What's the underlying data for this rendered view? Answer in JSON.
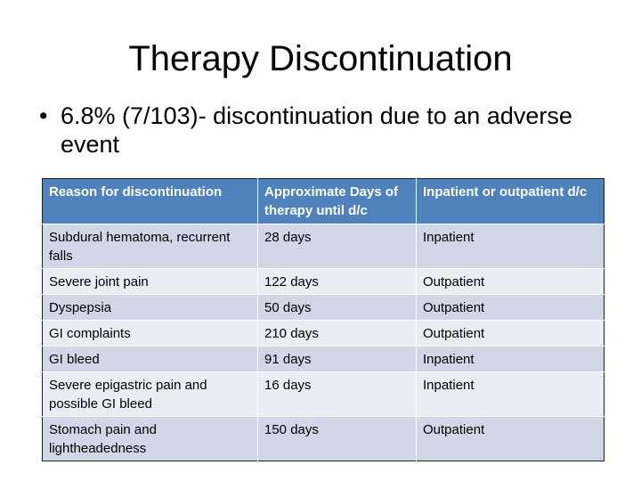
{
  "slide": {
    "title": "Therapy Discontinuation",
    "bullet": "6.8% (7/103)- discontinuation due to an adverse event"
  },
  "table": {
    "headers": [
      "Reason for discontinuation",
      "Approximate Days of therapy until d/c",
      "Inpatient or outpatient d/c"
    ],
    "rows": [
      [
        "Subdural hematoma, recurrent falls",
        "28 days",
        "Inpatient"
      ],
      [
        "Severe joint pain",
        "122 days",
        "Outpatient"
      ],
      [
        "Dyspepsia",
        "50 days",
        "Outpatient"
      ],
      [
        "GI complaints",
        "210 days",
        "Outpatient"
      ],
      [
        "GI bleed",
        "91 days",
        "Inpatient"
      ],
      [
        "Severe epigastric pain and possible GI bleed",
        "16 days",
        "Inpatient"
      ],
      [
        "Stomach pain and lightheadedness",
        "150 days",
        "Outpatient"
      ]
    ]
  },
  "colors": {
    "header_bg": "#4f81bd",
    "row_odd_bg": "#d0d8e8",
    "row_even_bg": "#e9edf4"
  }
}
